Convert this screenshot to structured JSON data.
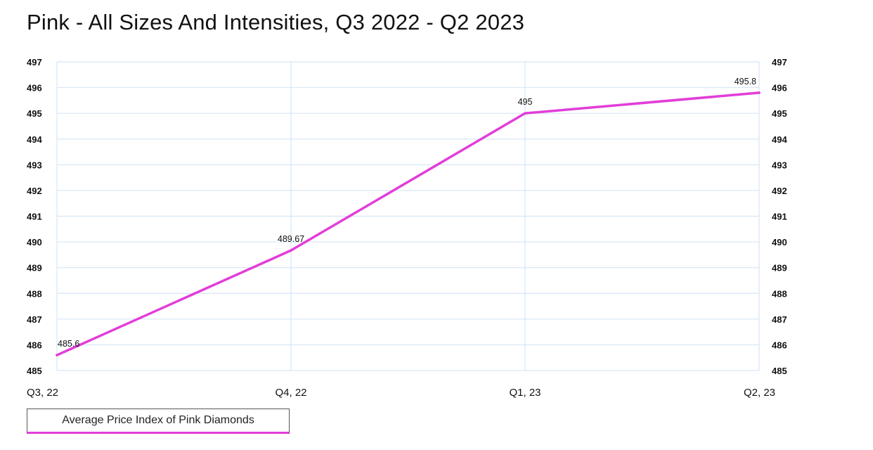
{
  "chart_data": {
    "type": "line",
    "title": "Pink - All Sizes And Intensities, Q3 2022 - Q2 2023",
    "categories": [
      "Q3, 22",
      "Q4, 22",
      "Q1, 23",
      "Q2, 23"
    ],
    "series": [
      {
        "name": "Average Price Index of Pink Diamonds",
        "values": [
          485.6,
          489.67,
          495,
          495.8
        ],
        "labels": [
          "485.6",
          "489.67",
          "495",
          "495.8"
        ],
        "color": "#e23dd9"
      }
    ],
    "y_ticks": [
      485,
      486,
      487,
      488,
      489,
      490,
      491,
      492,
      493,
      494,
      495,
      496,
      497
    ],
    "ylim": [
      485,
      497
    ],
    "y_axis_left": true,
    "y_axis_right": true,
    "grid": true,
    "gridline_color": "#d6e6f7",
    "legend_position": "bottom-left"
  }
}
